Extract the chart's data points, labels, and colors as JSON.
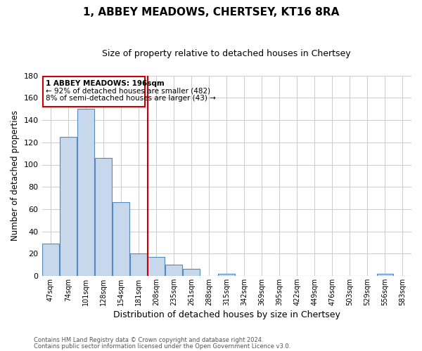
{
  "title": "1, ABBEY MEADOWS, CHERTSEY, KT16 8RA",
  "subtitle": "Size of property relative to detached houses in Chertsey",
  "xlabel": "Distribution of detached houses by size in Chertsey",
  "ylabel": "Number of detached properties",
  "bar_labels": [
    "47sqm",
    "74sqm",
    "101sqm",
    "128sqm",
    "154sqm",
    "181sqm",
    "208sqm",
    "235sqm",
    "261sqm",
    "288sqm",
    "315sqm",
    "342sqm",
    "369sqm",
    "395sqm",
    "422sqm",
    "449sqm",
    "476sqm",
    "503sqm",
    "529sqm",
    "556sqm",
    "583sqm"
  ],
  "bar_values": [
    29,
    125,
    150,
    106,
    66,
    20,
    17,
    10,
    6,
    0,
    2,
    0,
    0,
    0,
    0,
    0,
    0,
    0,
    0,
    2,
    0
  ],
  "bar_color": "#c8d8ec",
  "bar_edge_color": "#5588bb",
  "ylim": [
    0,
    180
  ],
  "yticks": [
    0,
    20,
    40,
    60,
    80,
    100,
    120,
    140,
    160,
    180
  ],
  "property_line_x": 5.5,
  "property_line_color": "#cc0000",
  "annotation_title": "1 ABBEY MEADOWS: 196sqm",
  "annotation_line1": "← 92% of detached houses are smaller (482)",
  "annotation_line2": "8% of semi-detached houses are larger (43) →",
  "annotation_box_color": "#cc0000",
  "footnote1": "Contains HM Land Registry data © Crown copyright and database right 2024.",
  "footnote2": "Contains public sector information licensed under the Open Government Licence v3.0.",
  "background_color": "#ffffff",
  "grid_color": "#cccccc"
}
